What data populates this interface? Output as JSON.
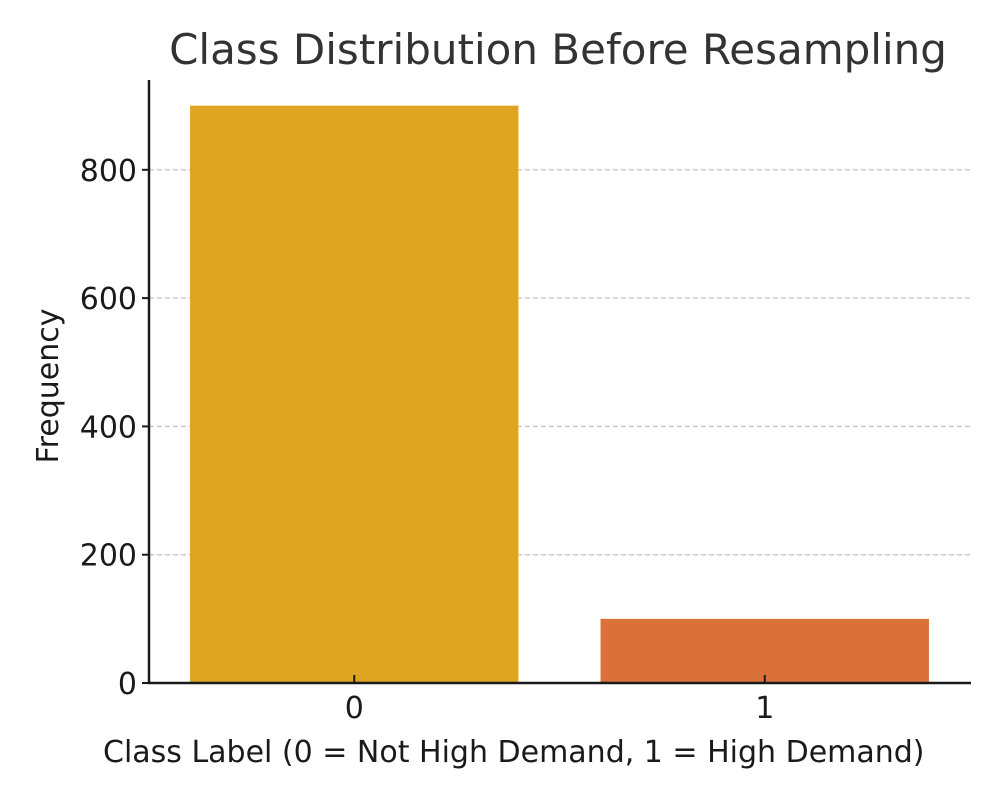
{
  "chart_data": {
    "type": "bar",
    "title": "Class Distribution Before Resampling",
    "xlabel": "Class Label (0 = Not High Demand, 1 = High Demand)",
    "ylabel": "Frequency",
    "categories": [
      "0",
      "1"
    ],
    "values": [
      900,
      100
    ],
    "colors": [
      "#dfa421",
      "#d97139"
    ],
    "ylim": [
      0,
      940
    ],
    "yticks": [
      0,
      200,
      400,
      600,
      800
    ],
    "grid": "y-dashed",
    "legend": "none"
  }
}
